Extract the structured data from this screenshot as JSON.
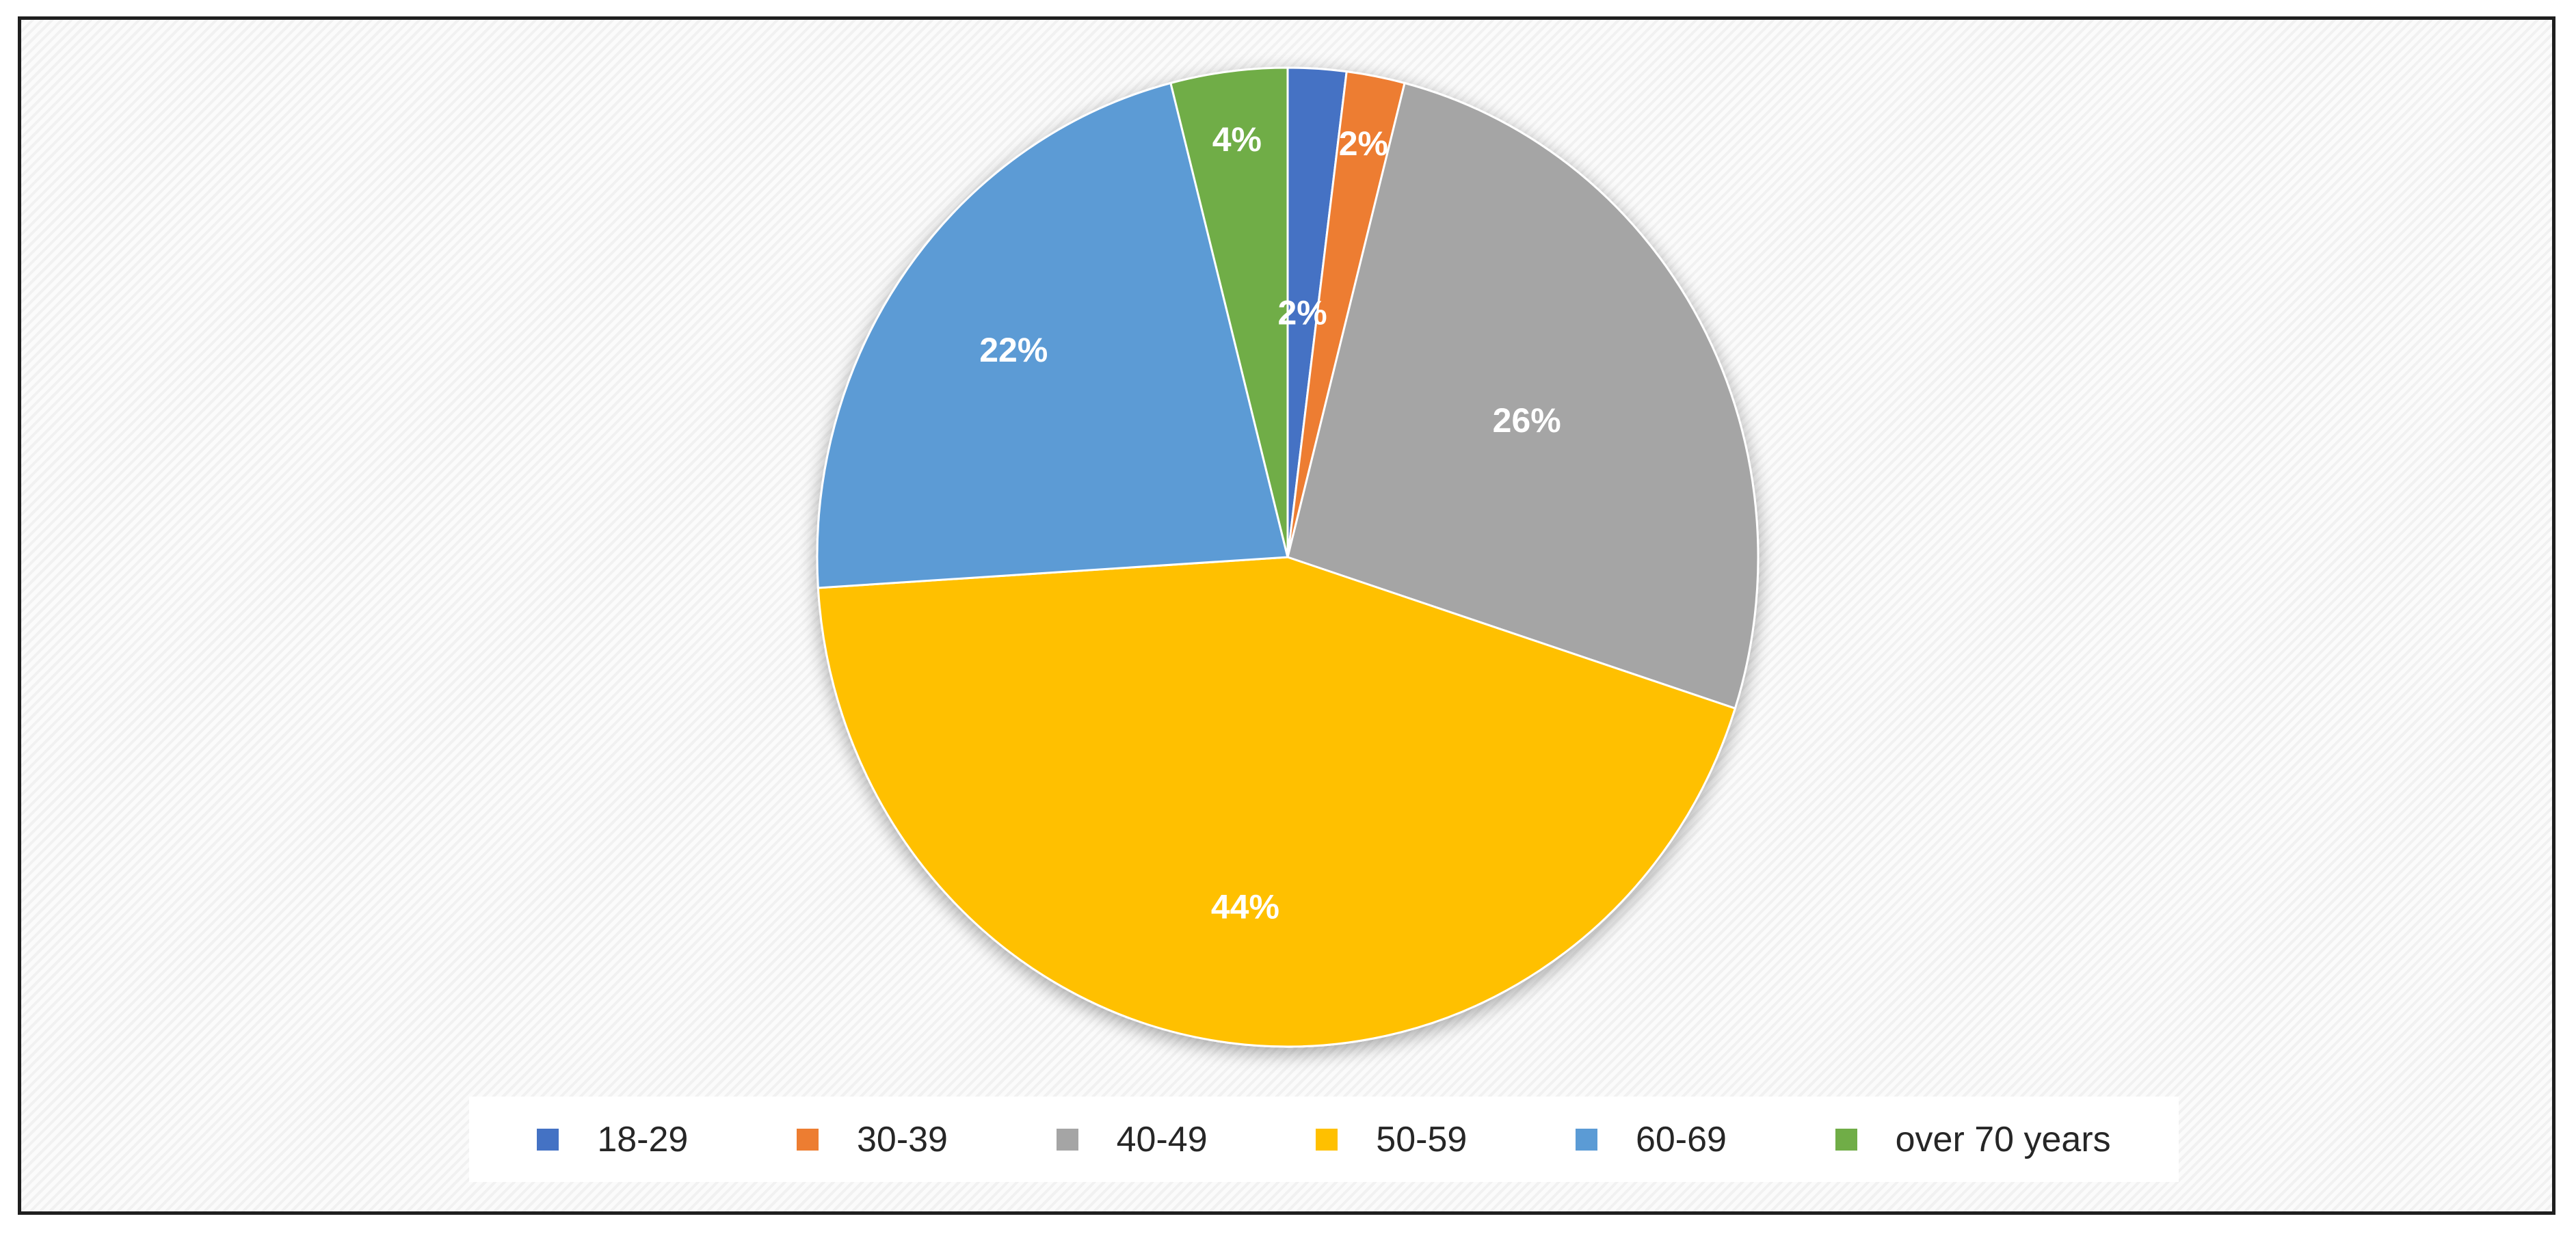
{
  "chart_data": {
    "type": "pie",
    "title": "",
    "start_angle_deg": 0,
    "direction": "clockwise",
    "legend_position": "bottom",
    "slices": [
      {
        "label": "18-29",
        "value": 2,
        "display": "2%",
        "color": "#4472C4"
      },
      {
        "label": "30-39",
        "value": 2,
        "display": "2%",
        "color": "#ED7D31"
      },
      {
        "label": "40-49",
        "value": 26,
        "display": "26%",
        "color": "#A5A5A5"
      },
      {
        "label": "50-59",
        "value": 44,
        "display": "44%",
        "color": "#FFC000"
      },
      {
        "label": "60-69",
        "value": 22,
        "display": "22%",
        "color": "#5B9BD5"
      },
      {
        "label": "over 70 years",
        "value": 4,
        "display": "4%",
        "color": "#70AD47"
      }
    ]
  }
}
